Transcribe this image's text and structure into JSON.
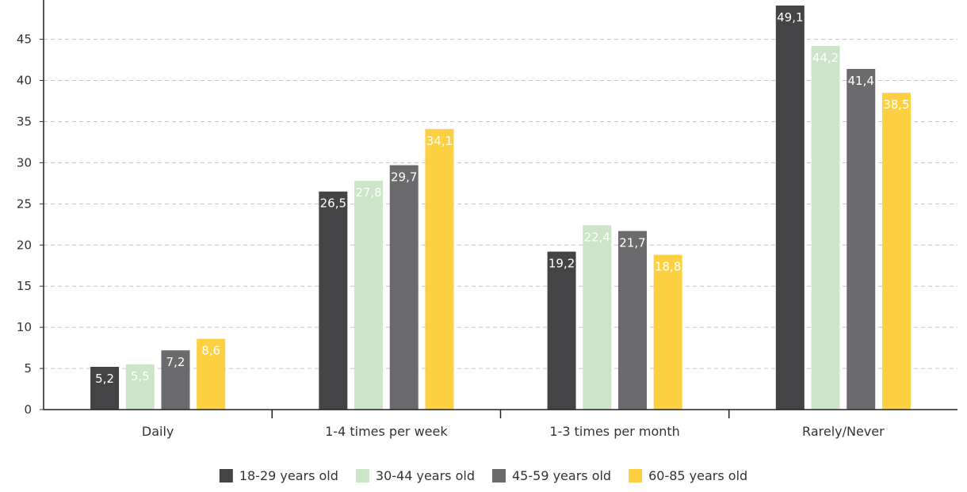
{
  "chart_data": {
    "type": "bar",
    "categories": [
      "Daily",
      "1-4 times per week",
      "1-3 times per month",
      "Rarely/Never"
    ],
    "series": [
      {
        "name": "18-29 years old",
        "values": [
          5.2,
          26.5,
          19.2,
          49.1
        ],
        "labels": [
          "5,2",
          "26,5",
          "19,2",
          "49,1"
        ],
        "color": "#444446",
        "label_color": "#ffffff"
      },
      {
        "name": "30-44 years old",
        "values": [
          5.5,
          27.8,
          22.4,
          44.2
        ],
        "labels": [
          "5,5",
          "27,8",
          "22,4",
          "44,2"
        ],
        "color": "#cce5c8",
        "label_color": "#ffffff"
      },
      {
        "name": "45-59 years old",
        "values": [
          7.2,
          29.7,
          21.7,
          41.4
        ],
        "labels": [
          "7,2",
          "29,7",
          "21,7",
          "41,4"
        ],
        "color": "#6b6b6d",
        "label_color": "#ffffff"
      },
      {
        "name": "60-85 years old",
        "values": [
          8.6,
          34.1,
          18.8,
          38.5
        ],
        "labels": [
          "8,6",
          "34,1",
          "18,8",
          "38,5"
        ],
        "color": "#fdd041",
        "label_color": "#ffffff"
      }
    ],
    "yticks": [
      0,
      5,
      10,
      15,
      20,
      25,
      30,
      35,
      40,
      45
    ],
    "ylim": [
      0,
      49.1
    ],
    "grid": true,
    "legend_position": "bottom"
  }
}
